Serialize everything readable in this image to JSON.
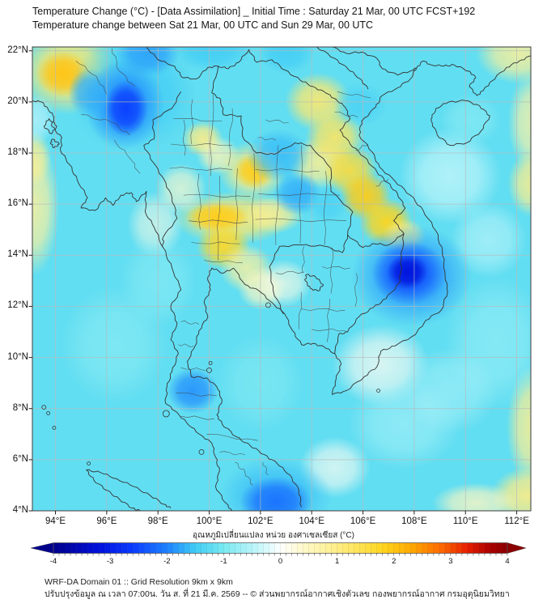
{
  "header": {
    "title_line1": "Temperature Change (°C) - [Data Assimilation] _ Initial Time : Saturday 21 Mar, 00 UTC FCST+192",
    "title_line2": "Temperature change between Sat 21 Mar, 00 UTC and Sun 29 Mar, 00 UTC"
  },
  "map": {
    "lon_min": 93.1,
    "lon_max": 112.55,
    "lat_min": 4.0,
    "lat_max": 22.15,
    "lon_tick_values": [
      94,
      96,
      98,
      100,
      102,
      104,
      106,
      108,
      110,
      112
    ],
    "lon_tick_labels": [
      "94°E",
      "96°E",
      "98°E",
      "100°E",
      "102°E",
      "104°E",
      "106°E",
      "108°E",
      "110°E",
      "112°E"
    ],
    "lat_tick_values": [
      22,
      20,
      18,
      16,
      14,
      12,
      10,
      8,
      6,
      4
    ],
    "lat_tick_labels": [
      "22°N",
      "20°N",
      "18°N",
      "16°N",
      "14°N",
      "12°N",
      "10°N",
      "8°N",
      "6°N",
      "4°N"
    ],
    "colors": {
      "grid": "#b9b9b9",
      "frame": "#4d4d4d",
      "boundary": "#333333",
      "province": "#444444"
    }
  },
  "colorbar": {
    "title": "อุณหภูมิเปลี่ยนแปลง หน่วย องศาเซลเซียส (°C)",
    "min": -4,
    "max": 4,
    "step": 0.1,
    "tick_labels": [
      "-4",
      "-3",
      "-2",
      "-1",
      "0",
      "1",
      "2",
      "3",
      "4"
    ],
    "left_arrow_color": "#00008b",
    "right_arrow_color": "#8b0000"
  },
  "footer": {
    "line1": "WRF-DA Domain 01 :: Grid Resolution 9km x 9km",
    "line2": "ปรับปรุงข้อมูล ณ เวลา 07:00น. วัน ส. ที่ 21 มี.ค. 2569 -- © ส่วนพยากรณ์อากาศเชิงตัวเลข กองพยากรณ์อากาศ กรมอุตุนิยมวิทยา"
  },
  "chart_data": {
    "type": "heatmap",
    "field": "temperature_change_c",
    "units": "°C",
    "value_range": [
      -4,
      4
    ],
    "base_value": -1.2,
    "colormap_anchors": [
      [
        -4.0,
        "#00008b"
      ],
      [
        -3.2,
        "#0010dc"
      ],
      [
        -2.6,
        "#0a3cff"
      ],
      [
        -2.0,
        "#1e82ff"
      ],
      [
        -1.5,
        "#40ccf6"
      ],
      [
        -1.0,
        "#78eaf0"
      ],
      [
        -0.6,
        "#aaf2f8"
      ],
      [
        -0.25,
        "#d7fafc"
      ],
      [
        0.0,
        "#ffffff"
      ],
      [
        0.3,
        "#fffad7"
      ],
      [
        0.7,
        "#fff4aa"
      ],
      [
        1.2,
        "#ffe96e"
      ],
      [
        1.8,
        "#ffd61e"
      ],
      [
        2.3,
        "#ffaa00"
      ],
      [
        2.8,
        "#ff6e00"
      ],
      [
        3.3,
        "#e61e00"
      ],
      [
        3.7,
        "#aa0000"
      ],
      [
        4.0,
        "#8b0000"
      ]
    ],
    "blob_format": [
      "lon",
      "lat",
      "rx_deg",
      "ry_deg",
      "value_c",
      "alpha"
    ],
    "blobs": [
      [
        94.5,
        21.2,
        2.0,
        1.7,
        1.2,
        0.9
      ],
      [
        94.3,
        21.1,
        1.05,
        0.9,
        2.0,
        0.95
      ],
      [
        93.15,
        15.9,
        1.0,
        2.7,
        0.8,
        0.85
      ],
      [
        93.1,
        17.8,
        0.75,
        1.1,
        0.9,
        0.8
      ],
      [
        99.75,
        18.55,
        0.8,
        0.7,
        1.0,
        0.9
      ],
      [
        100.35,
        17.9,
        0.85,
        0.75,
        0.6,
        0.8
      ],
      [
        101.7,
        17.3,
        1.35,
        1.15,
        1.0,
        0.85
      ],
      [
        101.75,
        17.3,
        0.8,
        0.7,
        1.9,
        0.95
      ],
      [
        100.9,
        15.45,
        2.3,
        1.05,
        1.2,
        0.9
      ],
      [
        100.3,
        15.5,
        1.25,
        0.6,
        1.9,
        0.95
      ],
      [
        102.5,
        15.6,
        1.2,
        0.75,
        0.9,
        0.8
      ],
      [
        104.3,
        17.6,
        1.25,
        1.0,
        0.9,
        0.85
      ],
      [
        104.25,
        20.0,
        1.3,
        1.15,
        1.2,
        0.9
      ],
      [
        104.9,
        18.6,
        1.15,
        1.05,
        1.3,
        0.9
      ],
      [
        105.5,
        17.3,
        1.05,
        1.0,
        1.6,
        0.9
      ],
      [
        106.1,
        16.3,
        1.0,
        0.95,
        1.9,
        0.95
      ],
      [
        106.9,
        15.3,
        1.05,
        0.95,
        1.8,
        0.95
      ],
      [
        107.6,
        14.75,
        0.85,
        0.7,
        1.0,
        0.8
      ],
      [
        112.1,
        21.9,
        1.7,
        1.2,
        0.85,
        0.85
      ],
      [
        112.65,
        19.2,
        1.0,
        2.0,
        0.75,
        0.8
      ],
      [
        112.6,
        16.8,
        0.95,
        1.3,
        0.95,
        0.85
      ],
      [
        112.6,
        7.3,
        1.0,
        2.4,
        0.9,
        0.85
      ],
      [
        112.4,
        4.6,
        1.4,
        1.1,
        1.0,
        0.9
      ],
      [
        110.4,
        4.3,
        1.7,
        0.8,
        0.5,
        0.8
      ],
      [
        100.55,
        14.35,
        1.05,
        0.9,
        1.7,
        0.95
      ],
      [
        101.45,
        13.5,
        1.05,
        0.95,
        0.8,
        0.8
      ],
      [
        102.05,
        12.7,
        0.95,
        0.85,
        0.5,
        0.8
      ],
      [
        98.9,
        16.6,
        1.0,
        1.0,
        0.4,
        0.7
      ],
      [
        97.9,
        15.2,
        1.1,
        1.3,
        0.2,
        0.6
      ],
      [
        102.9,
        12.9,
        1.1,
        0.95,
        0.2,
        0.7
      ],
      [
        106.7,
        9.7,
        1.9,
        1.6,
        0.1,
        0.75
      ],
      [
        104.9,
        5.7,
        1.4,
        1.2,
        0.1,
        0.7
      ],
      [
        109.4,
        17.1,
        2.0,
        1.9,
        -0.4,
        0.8
      ],
      [
        110.9,
        14.6,
        1.5,
        1.5,
        -0.5,
        0.7
      ],
      [
        111.2,
        10.6,
        2.0,
        2.6,
        -0.7,
        0.6
      ],
      [
        109.4,
        8.7,
        1.9,
        1.7,
        -0.6,
        0.6
      ],
      [
        107.6,
        7.4,
        2.2,
        1.8,
        -0.6,
        0.6
      ],
      [
        96.3,
        10.5,
        2.1,
        2.3,
        -0.8,
        0.6
      ],
      [
        98.0,
        13.0,
        1.5,
        1.8,
        -0.8,
        0.55
      ],
      [
        102.0,
        9.0,
        1.7,
        1.9,
        -0.85,
        0.55
      ],
      [
        93.2,
        19.3,
        0.8,
        1.0,
        -0.3,
        0.6
      ],
      [
        110.2,
        19.3,
        1.2,
        1.0,
        -0.8,
        0.6
      ],
      [
        97.0,
        20.3,
        2.5,
        2.3,
        -1.5,
        0.85
      ],
      [
        96.7,
        19.9,
        1.55,
        1.75,
        -1.9,
        0.9
      ],
      [
        96.75,
        19.75,
        0.85,
        1.1,
        -2.6,
        0.95
      ],
      [
        95.35,
        20.35,
        0.85,
        0.95,
        -1.7,
        0.85
      ],
      [
        97.6,
        21.95,
        1.25,
        0.95,
        -1.8,
        0.9
      ],
      [
        100.1,
        22.1,
        1.6,
        0.9,
        -1.5,
        0.85
      ],
      [
        103.0,
        21.95,
        1.1,
        0.85,
        -1.5,
        0.8
      ],
      [
        102.7,
        17.9,
        1.25,
        1.05,
        -1.6,
        0.9
      ],
      [
        103.45,
        16.4,
        0.95,
        0.85,
        -1.7,
        0.9
      ],
      [
        104.6,
        16.0,
        0.8,
        0.75,
        -1.4,
        0.8
      ],
      [
        105.9,
        19.9,
        1.05,
        0.85,
        -1.4,
        0.8
      ],
      [
        107.9,
        13.2,
        2.35,
        2.0,
        -1.8,
        0.9
      ],
      [
        107.8,
        13.3,
        1.45,
        1.25,
        -2.4,
        0.95
      ],
      [
        107.75,
        13.35,
        0.8,
        0.7,
        -3.2,
        0.95
      ],
      [
        99.35,
        8.7,
        1.0,
        0.9,
        -1.9,
        0.9
      ],
      [
        102.6,
        4.6,
        2.2,
        1.5,
        -1.6,
        0.8
      ],
      [
        102.6,
        4.35,
        1.4,
        1.0,
        -2.2,
        0.9
      ]
    ]
  }
}
